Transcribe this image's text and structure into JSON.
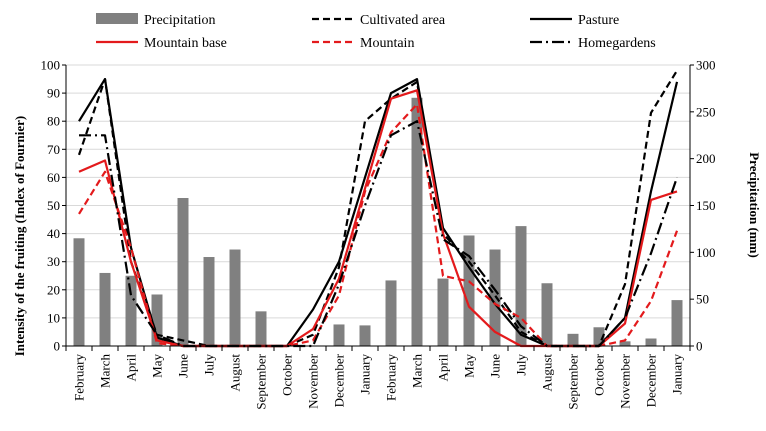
{
  "chart_data": {
    "type": "bar+line",
    "categories": [
      "February",
      "March",
      "April",
      "May",
      "June",
      "July",
      "August",
      "September",
      "October",
      "November",
      "December",
      "January",
      "February",
      "March",
      "April",
      "May",
      "June",
      "July",
      "August",
      "September",
      "October",
      "November",
      "December",
      "January"
    ],
    "ylabel": "Intensity of the fruiting (Index of Fournier)",
    "y2label": "Precipitation (mm)",
    "ylim": [
      0,
      100
    ],
    "y2lim": [
      0,
      300
    ],
    "yticks": [
      0,
      10,
      20,
      30,
      40,
      50,
      60,
      70,
      80,
      90,
      100
    ],
    "y2ticks": [
      0,
      50,
      100,
      150,
      200,
      250,
      300
    ],
    "legend_position": "top",
    "bar_series": {
      "name": "Precipitation",
      "axis": "secondary",
      "color": "#808080",
      "values": [
        115,
        78,
        75,
        55,
        158,
        95,
        103,
        37,
        0,
        0,
        23,
        22,
        70,
        265,
        72,
        118,
        103,
        128,
        67,
        13,
        20,
        5,
        8,
        49
      ]
    },
    "line_series": [
      {
        "name": "Cultivated area",
        "color": "#000000",
        "dash": "7,4",
        "values": [
          68,
          95,
          30,
          4,
          2,
          0,
          0,
          0,
          0,
          4,
          28,
          80,
          88,
          94,
          40,
          30,
          18,
          5,
          0,
          0,
          0,
          22,
          83,
          98
        ]
      },
      {
        "name": "Pasture",
        "color": "#000000",
        "dash": "",
        "values": [
          80,
          95,
          35,
          3,
          0,
          0,
          0,
          0,
          0,
          13,
          30,
          60,
          90,
          95,
          42,
          28,
          15,
          4,
          0,
          0,
          0,
          10,
          55,
          94
        ]
      },
      {
        "name": "Mountain base",
        "color": "#e31a1c",
        "dash": "",
        "values": [
          62,
          66,
          30,
          2,
          0,
          0,
          0,
          0,
          0,
          6,
          24,
          56,
          88,
          91,
          40,
          14,
          5,
          0,
          0,
          0,
          0,
          8,
          52,
          55
        ]
      },
      {
        "name": "Mountain",
        "color": "#e31a1c",
        "dash": "7,4",
        "values": [
          47,
          62,
          35,
          1,
          0,
          0,
          0,
          0,
          0,
          2,
          18,
          55,
          76,
          86,
          25,
          23,
          15,
          10,
          0,
          0,
          0,
          2,
          16,
          41
        ]
      },
      {
        "name": "Homegardens",
        "color": "#000000",
        "dash": "12,4,2,4",
        "values": [
          75,
          75,
          18,
          4,
          0,
          0,
          0,
          0,
          0,
          0,
          22,
          50,
          75,
          80,
          38,
          32,
          20,
          7,
          0,
          0,
          0,
          10,
          33,
          60
        ]
      }
    ]
  }
}
